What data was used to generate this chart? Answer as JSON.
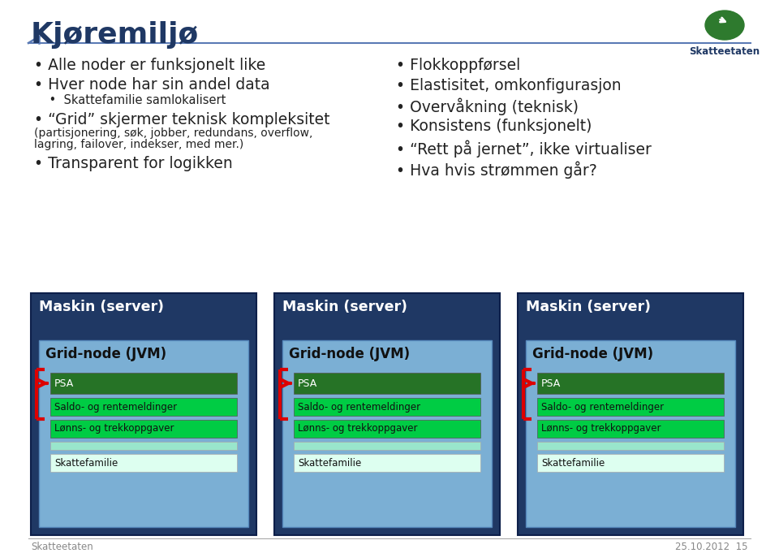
{
  "title": "Kjøremiljø",
  "bg_color": "#ffffff",
  "title_color": "#1f3864",
  "title_fontsize": 26,
  "separator_color": "#5a7ab5",
  "left_bullets": [
    [
      "Alle noder er funksjonelt like",
      14,
      false
    ],
    [
      "Hver node har sin andel data",
      14,
      false
    ],
    [
      "    •  Skattefamilie samlokalisert",
      10.5,
      false
    ],
    [
      "“Grid” skjermer teknisk kompleksitet",
      14,
      false
    ],
    [
      "(partisjonering, søk, jobber, redundans, overflow,",
      10,
      false
    ],
    [
      "lagring, failover, indekser, med mer.)",
      10,
      false
    ],
    [
      "Transparent for logikken",
      14,
      false
    ]
  ],
  "right_bullets": [
    "Flokkoppførsel",
    "Elastisitet, omkonfigurasjon",
    "Overvåkning (teknisk)",
    "Konsistens (funksjonelt)",
    "“Rett på jernet”, ikke virtualiser",
    "Hva hvis strømmen går?"
  ],
  "maskin_bg": "#1f3864",
  "maskin_label": "Maskin (server)",
  "gridnode_bg": "#7bafd4",
  "gridnode_label": "Grid-node (JVM)",
  "psa_bg": "#267326",
  "psa_label": "PSA",
  "saldo_bg": "#00cc44",
  "saldo_label": "Saldo- og rentemeldinger",
  "lonns_bg": "#00cc44",
  "lonns_label": "Lønns- og trekkoppgaver",
  "thin_bar_bg": "#99e6cc",
  "skattefamilie_bg": "#ddfff0",
  "skattefamilie_label": "Skattefamilie",
  "arrow_color": "#dd0000",
  "footer_left": "Skatteetaten",
  "footer_right": "25.10.2012  15",
  "footer_color": "#888888",
  "logo_color": "#2e7a2e"
}
